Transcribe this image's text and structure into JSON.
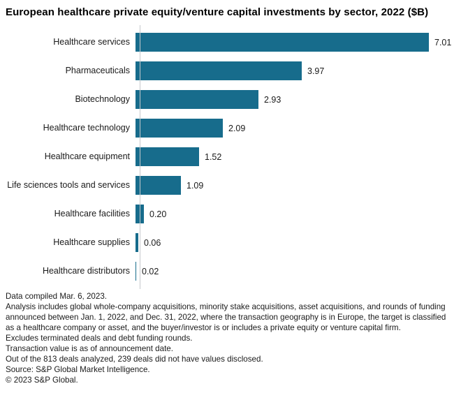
{
  "title": "European healthcare private equity/venture capital investments by sector, 2022 ($B)",
  "colors": {
    "bar": "#176c8c",
    "axis": "#c5c9cc",
    "text": "#1a1a1a"
  },
  "chart_data": {
    "type": "bar",
    "orientation": "horizontal",
    "title": "European healthcare private equity/venture capital investments by sector, 2022 ($B)",
    "xlabel": "",
    "ylabel": "",
    "xlim": [
      0,
      7.5
    ],
    "grid": false,
    "legend": false,
    "categories": [
      "Healthcare services",
      "Pharmaceuticals",
      "Biotechnology",
      "Healthcare technology",
      "Healthcare equipment",
      "Life sciences tools and services",
      "Healthcare facilities",
      "Healthcare supplies",
      "Healthcare distributors"
    ],
    "values": [
      7.01,
      3.97,
      2.93,
      2.09,
      1.52,
      1.09,
      0.2,
      0.06,
      0.02
    ],
    "value_labels": [
      "7.01",
      "3.97",
      "2.93",
      "2.09",
      "1.52",
      "1.09",
      "0.20",
      "0.06",
      "0.02"
    ]
  },
  "footnotes": [
    "Data compiled Mar. 6, 2023.",
    "Analysis includes global whole-company acquisitions, minority stake acquisitions, asset acquisitions, and rounds of funding announced between Jan. 1, 2022, and Dec. 31, 2022, where the transaction geography is in Europe, the target is classified as a healthcare company or asset, and the buyer/investor is or includes a private equity or venture capital firm.",
    "Excludes terminated deals and debt funding rounds.",
    "Transaction value is as of announcement date.",
    "Out of the 813 deals analyzed, 239 deals did not have values disclosed.",
    "Source: S&P Global Market Intelligence.",
    "© 2023 S&P Global."
  ]
}
